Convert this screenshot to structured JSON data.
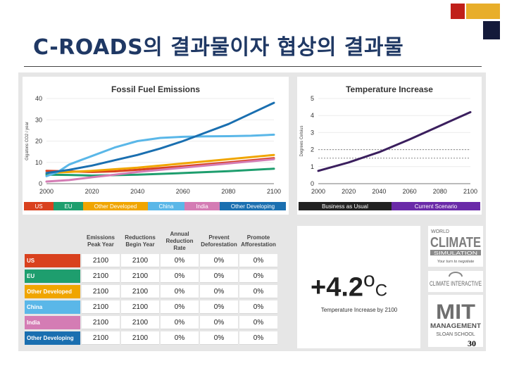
{
  "slide": {
    "title": "C-ROADS의 결과물이자 협상의 결과물",
    "page_number": "30",
    "colors": {
      "title": "#1f3864",
      "deco_red": "#c0201a",
      "deco_gold": "#e8ae2a",
      "deco_navy": "#141a3a"
    }
  },
  "fossil_chart": {
    "title": "Fossil Fuel Emissions",
    "ylabel": "Gigatons CO2 / year",
    "legend": [
      {
        "name": "US",
        "color": "#d9411e"
      },
      {
        "name": "EU",
        "color": "#1e9e6e"
      },
      {
        "name": "Other Developed",
        "color": "#f0a500"
      },
      {
        "name": "China",
        "color": "#5ab7e8"
      },
      {
        "name": "India",
        "color": "#d47cb4"
      },
      {
        "name": "Other Developing",
        "color": "#1a6fb0"
      }
    ]
  },
  "temp_chart": {
    "title": "Temperature Increase",
    "ylabel": "Degrees Celsius",
    "legend": [
      {
        "name": "Business as Usual",
        "color": "#222222"
      },
      {
        "name": "Current Scenario",
        "color": "#6a2aa8"
      }
    ]
  },
  "chart_data": [
    {
      "type": "line",
      "title": "Fossil Fuel Emissions",
      "xlabel": "",
      "ylabel": "Gigatons CO2 / year",
      "xlim": [
        2000,
        2100
      ],
      "ylim": [
        0,
        40
      ],
      "xticks": [
        2000,
        2020,
        2040,
        2060,
        2080,
        2100
      ],
      "yticks": [
        0,
        10,
        20,
        30,
        40
      ],
      "legend_position": "bottom",
      "series": [
        {
          "name": "US",
          "color": "#d9411e",
          "x": [
            2000,
            2010,
            2020,
            2030,
            2040,
            2060,
            2080,
            2100
          ],
          "y": [
            6,
            5.8,
            5.5,
            5.8,
            6.5,
            8.2,
            10,
            12
          ]
        },
        {
          "name": "EU",
          "color": "#1e9e6e",
          "x": [
            2000,
            2010,
            2020,
            2040,
            2060,
            2080,
            2100
          ],
          "y": [
            4.2,
            4.1,
            3.8,
            4.2,
            5,
            5.9,
            7
          ]
        },
        {
          "name": "Other Developed",
          "color": "#f0a500",
          "x": [
            2000,
            2010,
            2020,
            2040,
            2060,
            2080,
            2100
          ],
          "y": [
            5,
            5.5,
            6,
            7.5,
            9.5,
            11.5,
            13.5
          ]
        },
        {
          "name": "China",
          "color": "#5ab7e8",
          "x": [
            2000,
            2005,
            2010,
            2015,
            2020,
            2030,
            2040,
            2050,
            2060,
            2070,
            2080,
            2090,
            2100
          ],
          "y": [
            3.5,
            5.5,
            9,
            11,
            13,
            17,
            20,
            21.5,
            22,
            22.2,
            22.3,
            22.5,
            23
          ]
        },
        {
          "name": "India",
          "color": "#d47cb4",
          "x": [
            2000,
            2010,
            2020,
            2030,
            2040,
            2060,
            2080,
            2100
          ],
          "y": [
            1,
            1.7,
            3,
            4.2,
            5.5,
            7.5,
            9.5,
            11.5
          ]
        },
        {
          "name": "Other Developing",
          "color": "#1a6fb0",
          "x": [
            2000,
            2010,
            2020,
            2030,
            2040,
            2050,
            2060,
            2070,
            2080,
            2090,
            2100
          ],
          "y": [
            5,
            6.5,
            8.5,
            11,
            13.5,
            16.5,
            20,
            24,
            28,
            33,
            38
          ]
        }
      ]
    },
    {
      "type": "line",
      "title": "Temperature Increase",
      "xlabel": "",
      "ylabel": "Degrees Celsius",
      "xlim": [
        2000,
        2100
      ],
      "ylim": [
        0,
        5
      ],
      "xticks": [
        2000,
        2020,
        2040,
        2060,
        2080,
        2100
      ],
      "yticks": [
        0,
        1,
        2,
        3,
        4,
        5
      ],
      "reference_lines": [
        2,
        1.5
      ],
      "legend_position": "bottom",
      "series": [
        {
          "name": "Current Scenario",
          "color": "#3b1f5e",
          "x": [
            2000,
            2020,
            2040,
            2060,
            2080,
            2100
          ],
          "y": [
            0.75,
            1.25,
            1.85,
            2.6,
            3.4,
            4.2
          ]
        }
      ]
    }
  ],
  "policy_table": {
    "headers": [
      [
        "Emissions",
        "Peak Year"
      ],
      [
        "Reductions",
        "Begin Year"
      ],
      [
        "Annual",
        "Reduction Rate"
      ],
      [
        "Prevent",
        "Deforestation"
      ],
      [
        "Promote",
        "Afforestation"
      ]
    ],
    "rows": [
      {
        "region": "US",
        "color": "#d9411e",
        "values": [
          "2100",
          "2100",
          "0%",
          "0%",
          "0%"
        ]
      },
      {
        "region": "EU",
        "color": "#1e9e6e",
        "values": [
          "2100",
          "2100",
          "0%",
          "0%",
          "0%"
        ]
      },
      {
        "region": "Other Developed",
        "color": "#f0a500",
        "values": [
          "2100",
          "2100",
          "0%",
          "0%",
          "0%"
        ]
      },
      {
        "region": "China",
        "color": "#5ab7e8",
        "values": [
          "2100",
          "2100",
          "0%",
          "0%",
          "0%"
        ]
      },
      {
        "region": "India",
        "color": "#d47cb4",
        "values": [
          "2100",
          "2100",
          "0%",
          "0%",
          "0%"
        ]
      },
      {
        "region": "Other Developing",
        "color": "#1a6fb0",
        "values": [
          "2100",
          "2100",
          "0%",
          "0%",
          "0%"
        ]
      }
    ]
  },
  "result": {
    "value": "+4.2",
    "degree": "o",
    "unit": "C",
    "caption": "Temperature Increase by 2100"
  },
  "logos": {
    "climate_scoreboard": {
      "line1": "WORLD",
      "line2": "CLIMATE",
      "line3": "SIMULATION",
      "tagline": "Your turn to negotiate"
    },
    "climate_interactive": "CLIMATE INTERACTIVE",
    "mit": {
      "letters": "MIT",
      "line1": "MANAGEMENT",
      "line2": "SLOAN SCHOOL"
    }
  }
}
